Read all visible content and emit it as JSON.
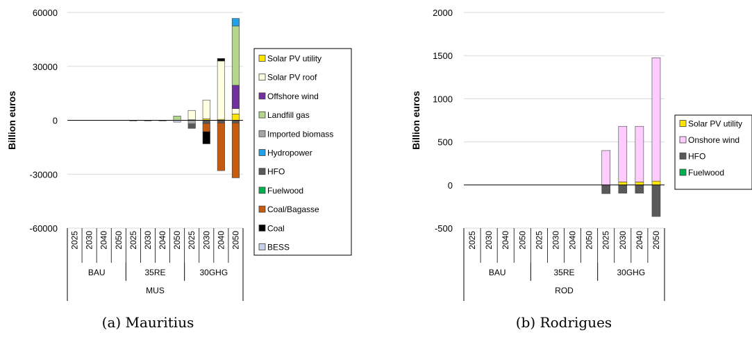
{
  "colors": {
    "Solar PV utility": "#ffe600",
    "Solar PV roof": "#fefee0",
    "Offshore wind": "#7030a0",
    "Landfill gas": "#b2d68c",
    "Imported biomass": "#a6a6a6",
    "Hydropower": "#1fa2e8",
    "HFO": "#595959",
    "Fuelwood": "#00b050",
    "Coal/Bagasse": "#c55a11",
    "Coal": "#000000",
    "BESS": "#c8d1e6",
    "Onshore wind": "#ffccff"
  },
  "chart_data": [
    {
      "type": "bar",
      "stacked": true,
      "caption": "(a) Mauritius",
      "ylabel": "Billion euros",
      "ylim": [
        -60000,
        60000
      ],
      "yticks": [
        60000,
        30000,
        0,
        -30000,
        -60000
      ],
      "ytick_labels": [
        "60000",
        "30000",
        "0",
        "-30000",
        "-60000"
      ],
      "categories": [
        "2025",
        "2030",
        "2040",
        "2050",
        "2025",
        "2030",
        "2040",
        "2050",
        "2025",
        "2030",
        "2040",
        "2050"
      ],
      "groups": [
        {
          "label": "BAU",
          "count": 4
        },
        {
          "label": "35RE",
          "count": 4
        },
        {
          "label": "30GHG",
          "count": 4
        }
      ],
      "outer_group": "MUS",
      "legend": [
        "Solar PV utility",
        "Solar PV roof",
        "Offshore wind",
        "Landfill gas",
        "Imported biomass",
        "Hydropower",
        "HFO",
        "Fuelwood",
        "Coal/Bagasse",
        "Coal",
        "BESS"
      ],
      "series": [
        {
          "name": "Solar PV utility",
          "values": [
            0,
            0,
            0,
            0,
            0,
            0,
            0,
            0,
            300,
            800,
            500,
            3500
          ]
        },
        {
          "name": "Solar PV roof",
          "values": [
            0,
            0,
            0,
            0,
            0,
            0,
            0,
            0,
            5200,
            10500,
            32500,
            3000
          ]
        },
        {
          "name": "Offshore wind",
          "values": [
            0,
            0,
            0,
            0,
            0,
            0,
            0,
            0,
            0,
            0,
            0,
            13000
          ]
        },
        {
          "name": "Landfill gas",
          "values": [
            0,
            0,
            0,
            0,
            0,
            0,
            0,
            2400,
            0,
            0,
            0,
            33000
          ]
        },
        {
          "name": "Imported biomass",
          "values": [
            0,
            0,
            0,
            0,
            0,
            0,
            0,
            0,
            -2000,
            0,
            0,
            0
          ]
        },
        {
          "name": "Hydropower",
          "values": [
            0,
            0,
            0,
            0,
            0,
            0,
            0,
            0,
            0,
            0,
            0,
            4200
          ]
        },
        {
          "name": "HFO",
          "values": [
            0,
            0,
            0,
            0,
            -200,
            -200,
            -300,
            0,
            -2500,
            -1800,
            -1500,
            -1500
          ]
        },
        {
          "name": "Fuelwood",
          "values": [
            0,
            0,
            0,
            0,
            0,
            0,
            0,
            0,
            0,
            0,
            0,
            0
          ]
        },
        {
          "name": "Coal/Bagasse",
          "values": [
            0,
            0,
            0,
            0,
            0,
            0,
            0,
            0,
            0,
            -4500,
            -26500,
            -30500
          ]
        },
        {
          "name": "Coal",
          "values": [
            0,
            0,
            0,
            0,
            0,
            0,
            0,
            0,
            0,
            -6800,
            1400,
            0
          ]
        },
        {
          "name": "BESS",
          "values": [
            0,
            0,
            0,
            0,
            0,
            0,
            0,
            -1000,
            0,
            0,
            0,
            0
          ]
        }
      ]
    },
    {
      "type": "bar",
      "stacked": true,
      "caption": "(b) Rodrigues",
      "ylabel": "Billion euros",
      "ylim": [
        -500,
        2000
      ],
      "yticks": [
        2000,
        1500,
        1000,
        500,
        0,
        -500
      ],
      "ytick_labels": [
        "2000",
        "1500",
        "1000",
        "500",
        "0",
        "-500"
      ],
      "categories": [
        "2025",
        "2030",
        "2040",
        "2050",
        "2025",
        "2030",
        "2040",
        "2050",
        "2025",
        "2030",
        "2040",
        "2050"
      ],
      "groups": [
        {
          "label": "BAU",
          "count": 4
        },
        {
          "label": "35RE",
          "count": 4
        },
        {
          "label": "30GHG",
          "count": 4
        }
      ],
      "outer_group": "ROD",
      "legend": [
        "Solar PV utility",
        "Onshore wind",
        "HFO",
        "Fuelwood"
      ],
      "series": [
        {
          "name": "Solar PV utility",
          "values": [
            0,
            0,
            0,
            0,
            0,
            0,
            0,
            0,
            0,
            35,
            35,
            45
          ]
        },
        {
          "name": "Onshore wind",
          "values": [
            0,
            0,
            0,
            0,
            0,
            0,
            0,
            0,
            400,
            645,
            645,
            1430
          ]
        },
        {
          "name": "HFO",
          "values": [
            0,
            0,
            0,
            0,
            0,
            0,
            0,
            0,
            -100,
            -95,
            -95,
            -365
          ]
        },
        {
          "name": "Fuelwood",
          "values": [
            0,
            0,
            0,
            0,
            0,
            0,
            0,
            0,
            0,
            0,
            0,
            0
          ]
        }
      ]
    }
  ]
}
